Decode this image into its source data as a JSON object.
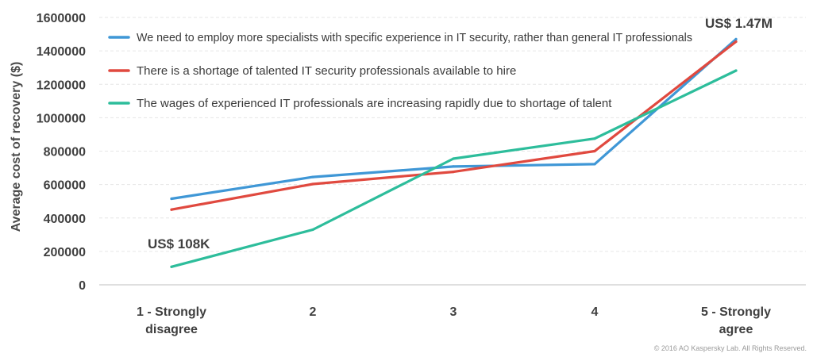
{
  "chart_data": {
    "type": "line",
    "categories": [
      "1 - Strongly disagree",
      "2",
      "3",
      "4",
      "5 - Strongly agree"
    ],
    "category_lines": [
      [
        "1 - Strongly",
        "disagree"
      ],
      [
        "2"
      ],
      [
        "3"
      ],
      [
        "4"
      ],
      [
        "5 - Strongly",
        "agree"
      ]
    ],
    "ylabel": "Average cost of recovery ($)",
    "xlabel": "",
    "ylim": [
      0,
      1600000
    ],
    "yticks": [
      "0",
      "200000",
      "400000",
      "600000",
      "800000",
      "1000000",
      "1200000",
      "1400000",
      "1600000"
    ],
    "grid": true,
    "legend_position": "top-left",
    "series": [
      {
        "name": "We need to employ more specialists with specific experience in IT security, rather than general IT professionals",
        "color": "#3f97d6",
        "values": [
          515000,
          645000,
          708000,
          722000,
          1470000
        ]
      },
      {
        "name": "There is a shortage of talented IT security professionals available to hire",
        "color": "#e0493f",
        "values": [
          450000,
          603000,
          676000,
          800000,
          1455000
        ]
      },
      {
        "name": "The wages of experienced IT professionals are increasing rapidly due to shortage of talent",
        "color": "#2dbd9b",
        "values": [
          108000,
          330000,
          755000,
          875000,
          1282000
        ]
      }
    ],
    "annotations": [
      {
        "text": "US$ 108K",
        "near": "series 3, category 1"
      },
      {
        "text": "US$ 1.47M",
        "near": "series 1, category 5"
      }
    ]
  },
  "footer": {
    "copyright": "© 2016 AO Kaspersky Lab. All Rights Reserved."
  }
}
